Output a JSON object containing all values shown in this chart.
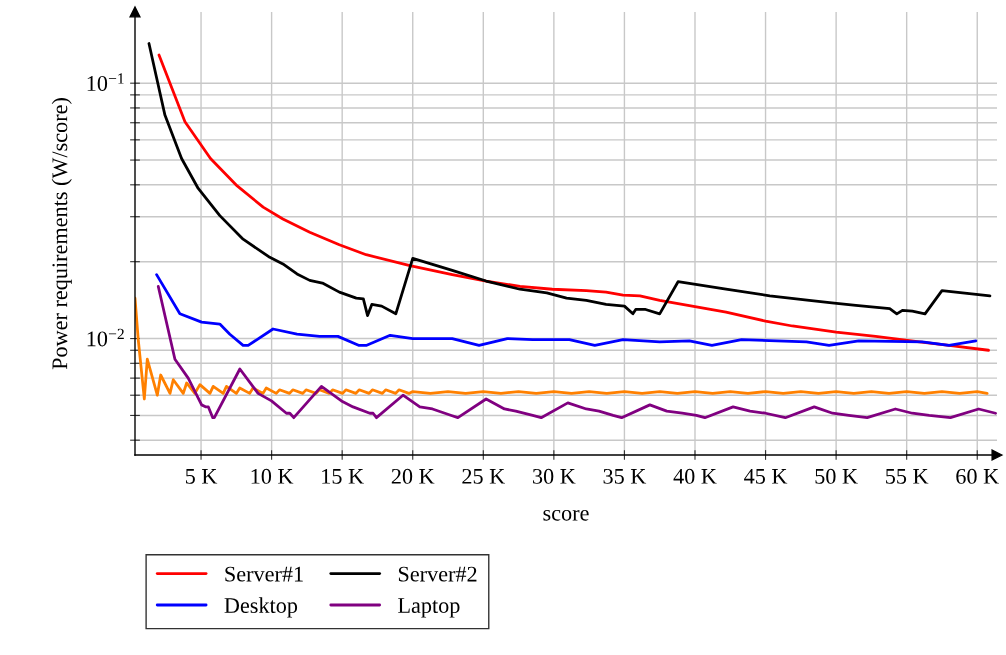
{
  "chart_data": {
    "type": "line",
    "xlabel": "score",
    "ylabel": "Power requirements (W/score)",
    "log": true,
    "grid": true,
    "legend": "bottom",
    "xlim": [
      320,
      61400
    ],
    "ylim": [
      0.0035,
      0.19
    ],
    "xticks": [
      {
        "value": 5000,
        "label": "5 K"
      },
      {
        "value": 10000,
        "label": "10 K"
      },
      {
        "value": 15000,
        "label": "15 K"
      },
      {
        "value": 20000,
        "label": "20 K"
      },
      {
        "value": 25000,
        "label": "25 K"
      },
      {
        "value": 30000,
        "label": "30 K"
      },
      {
        "value": 35000,
        "label": "35 K"
      },
      {
        "value": 40000,
        "label": "40 K"
      },
      {
        "value": 45000,
        "label": "45 K"
      },
      {
        "value": 50000,
        "label": "50 K"
      },
      {
        "value": 55000,
        "label": "55 K"
      },
      {
        "value": 60000,
        "label": "60 K"
      }
    ],
    "yticks": [
      {
        "value": 0.004,
        "label": null
      },
      {
        "value": 0.005,
        "label": null
      },
      {
        "value": 0.006,
        "label": null
      },
      {
        "value": 0.007,
        "label": null
      },
      {
        "value": 0.008,
        "label": null
      },
      {
        "value": 0.009,
        "label": null
      },
      {
        "value": 0.01,
        "label": "10$^{−2}$"
      },
      {
        "value": 0.02,
        "label": null
      },
      {
        "value": 0.03,
        "label": null
      },
      {
        "value": 0.04,
        "label": null
      },
      {
        "value": 0.05,
        "label": null
      },
      {
        "value": 0.06,
        "label": null
      },
      {
        "value": 0.07,
        "label": null
      },
      {
        "value": 0.08,
        "label": null
      },
      {
        "value": 0.09,
        "label": null
      },
      {
        "value": 0.1,
        "label": "10$^{−1}$"
      }
    ],
    "series": [
      {
        "name": "Server#1",
        "color": "#ff0000",
        "x": [
          2020,
          3860,
          5670,
          7560,
          9400,
          10800,
          12700,
          14800,
          16700,
          19800,
          22800,
          25200,
          27600,
          29900,
          32300,
          33700,
          34900,
          36100,
          37500,
          39800,
          42200,
          45000,
          46900,
          50000,
          52800,
          55900,
          58000,
          60800
        ],
        "values": [
          0.129,
          0.0706,
          0.0507,
          0.0396,
          0.0327,
          0.0294,
          0.0261,
          0.0233,
          0.0213,
          0.0193,
          0.0178,
          0.0168,
          0.016,
          0.0156,
          0.0154,
          0.0152,
          0.0148,
          0.0147,
          0.0141,
          0.0134,
          0.0127,
          0.0117,
          0.0112,
          0.0106,
          0.0102,
          0.0097,
          0.0094,
          0.009
        ]
      },
      {
        "name": "Server#2",
        "color": "#000000",
        "x": [
          1310,
          1850,
          2440,
          3620,
          4800,
          6330,
          7980,
          9870,
          10800,
          11800,
          12700,
          13600,
          14800,
          16000,
          16500,
          16800,
          17100,
          17800,
          18800,
          20000,
          22800,
          25200,
          27600,
          29500,
          30900,
          32300,
          33700,
          35000,
          35600,
          35800,
          36500,
          37500,
          38800,
          42200,
          45300,
          48100,
          49700,
          51400,
          53800,
          54300,
          54700,
          55400,
          56300,
          57500,
          60900
        ],
        "values": [
          0.143,
          0.105,
          0.075,
          0.0507,
          0.0387,
          0.0303,
          0.0245,
          0.0208,
          0.0196,
          0.0179,
          0.0169,
          0.0165,
          0.0152,
          0.0144,
          0.0143,
          0.0123,
          0.0136,
          0.0134,
          0.0125,
          0.0206,
          0.0185,
          0.0168,
          0.0156,
          0.0151,
          0.0144,
          0.0141,
          0.0136,
          0.0134,
          0.0125,
          0.013,
          0.013,
          0.0125,
          0.0167,
          0.0156,
          0.0147,
          0.0141,
          0.0138,
          0.0135,
          0.0131,
          0.0125,
          0.0129,
          0.0128,
          0.0125,
          0.0154,
          0.0147
        ]
      },
      {
        "name": "Desktop",
        "color": "#0000ff",
        "x": [
          1850,
          3500,
          5040,
          6330,
          7040,
          7980,
          8340,
          10100,
          11800,
          13400,
          14700,
          16200,
          16700,
          18400,
          20000,
          22800,
          24700,
          26700,
          28500,
          31100,
          32900,
          34900,
          37500,
          39600,
          41200,
          43300,
          47900,
          49500,
          51600,
          56100,
          58000,
          59900
        ],
        "values": [
          0.0178,
          0.0125,
          0.0116,
          0.0114,
          0.0104,
          0.0094,
          0.0094,
          0.0109,
          0.0104,
          0.0102,
          0.0102,
          0.0094,
          0.0094,
          0.0103,
          0.01,
          0.01,
          0.0094,
          0.01,
          0.0099,
          0.0099,
          0.0094,
          0.0099,
          0.0097,
          0.0098,
          0.0094,
          0.0099,
          0.0097,
          0.0094,
          0.0098,
          0.0097,
          0.0094,
          0.0098
        ]
      },
      {
        "color": "#ff8000",
        "x": [
          320,
          550,
          980,
          1190,
          1900,
          2140,
          2800,
          3030,
          3740,
          3980,
          4560,
          4920,
          5630,
          5860,
          6570,
          6800,
          7500,
          7740,
          8450,
          8680,
          9390,
          9620,
          10330,
          10560,
          11270,
          11500,
          12210,
          12440,
          13150,
          13380,
          14090,
          14320,
          15030,
          15260,
          15970,
          16200,
          16910,
          17140,
          17850,
          18080,
          18790,
          19020,
          19730,
          20000,
          21250,
          22500,
          23750,
          25000,
          26250,
          27500,
          28750,
          30000,
          31250,
          32500,
          33750,
          35000,
          36250,
          37500,
          38750,
          40000,
          41250,
          42500,
          43750,
          45000,
          46250,
          47500,
          48750,
          50000,
          51250,
          52500,
          53750,
          55000,
          56250,
          57500,
          58750,
          60000,
          60700
        ],
        "values": [
          0.0144,
          0.0099,
          0.0058,
          0.0083,
          0.006,
          0.0072,
          0.0061,
          0.0069,
          0.0061,
          0.0067,
          0.0061,
          0.0066,
          0.0061,
          0.0065,
          0.0061,
          0.0065,
          0.0061,
          0.0064,
          0.0061,
          0.0064,
          0.0061,
          0.0064,
          0.0061,
          0.0063,
          0.0061,
          0.0063,
          0.0061,
          0.0063,
          0.0061,
          0.0063,
          0.0061,
          0.0063,
          0.0061,
          0.0063,
          0.0061,
          0.0063,
          0.0061,
          0.0063,
          0.0061,
          0.0063,
          0.0061,
          0.0063,
          0.0061,
          0.0062,
          0.0061,
          0.0062,
          0.0061,
          0.0062,
          0.0061,
          0.0062,
          0.0061,
          0.0062,
          0.0061,
          0.0062,
          0.0061,
          0.0062,
          0.0061,
          0.0062,
          0.0061,
          0.0062,
          0.0061,
          0.0062,
          0.0061,
          0.0062,
          0.0061,
          0.0062,
          0.0061,
          0.0062,
          0.0061,
          0.0062,
          0.0061,
          0.0062,
          0.0061,
          0.0062,
          0.0061,
          0.0062,
          0.0061
        ]
      },
      {
        "name": "Laptop",
        "color": "#800080",
        "x": [
          1970,
          3150,
          4090,
          5040,
          5350,
          5520,
          5830,
          5940,
          7750,
          9040,
          9990,
          11050,
          11290,
          11570,
          13530,
          14950,
          15770,
          16960,
          17190,
          17430,
          19310,
          20500,
          21400,
          22740,
          23200,
          25200,
          26500,
          27300,
          28500,
          29100,
          30990,
          32300,
          33200,
          34200,
          34800,
          36800,
          38000,
          39100,
          40100,
          40700,
          42700,
          43900,
          45000,
          46400,
          48450,
          49750,
          50900,
          52200,
          54200,
          55400,
          56600,
          58100,
          60100,
          61300
        ],
        "values": [
          0.016,
          0.0083,
          0.007,
          0.0055,
          0.0054,
          0.0054,
          0.0049,
          0.0049,
          0.0076,
          0.0061,
          0.0057,
          0.0051,
          0.0051,
          0.0049,
          0.0065,
          0.0057,
          0.0054,
          0.0051,
          0.0051,
          0.0049,
          0.006,
          0.0054,
          0.0053,
          0.005,
          0.0049,
          0.0058,
          0.0053,
          0.0052,
          0.005,
          0.0049,
          0.0056,
          0.0053,
          0.0052,
          0.005,
          0.0049,
          0.0055,
          0.0052,
          0.0051,
          0.005,
          0.0049,
          0.0054,
          0.0052,
          0.0051,
          0.0049,
          0.0054,
          0.0051,
          0.005,
          0.0049,
          0.0053,
          0.0051,
          0.005,
          0.0049,
          0.0053,
          0.0051
        ]
      }
    ]
  }
}
